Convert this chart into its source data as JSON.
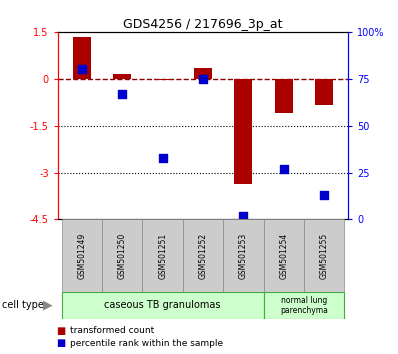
{
  "title": "GDS4256 / 217696_3p_at",
  "samples": [
    "GSM501249",
    "GSM501250",
    "GSM501251",
    "GSM501252",
    "GSM501253",
    "GSM501254",
    "GSM501255"
  ],
  "transformed_count": [
    1.35,
    0.15,
    -0.05,
    0.35,
    -3.35,
    -1.1,
    -0.85
  ],
  "percentile_rank": [
    80,
    67,
    33,
    75,
    2,
    27,
    13
  ],
  "ylim_left": [
    -4.5,
    1.5
  ],
  "ylim_right": [
    0,
    100
  ],
  "yticks_left": [
    1.5,
    0,
    -1.5,
    -3,
    -4.5
  ],
  "yticks_right": [
    0,
    25,
    50,
    75,
    100
  ],
  "yticklabels_left": [
    "1.5",
    "0",
    "-1.5",
    "-3",
    "-4.5"
  ],
  "yticklabels_right": [
    "0",
    "25",
    "50",
    "75",
    "100%"
  ],
  "hlines_dotted": [
    -1.5,
    -3
  ],
  "hline_dash": 0,
  "bar_color": "#aa0000",
  "dot_color": "#0000cc",
  "bar_width": 0.45,
  "dot_size": 40,
  "background_color": "#ffffff",
  "legend_items": [
    {
      "label": "transformed count",
      "color": "#aa0000"
    },
    {
      "label": "percentile rank within the sample",
      "color": "#0000cc"
    }
  ],
  "group1_label": "caseous TB granulomas",
  "group1_n": 5,
  "group2_label": "normal lung\nparenchyma",
  "group2_n": 2,
  "group_color": "#ccffcc",
  "group_edge_color": "#44aa44"
}
